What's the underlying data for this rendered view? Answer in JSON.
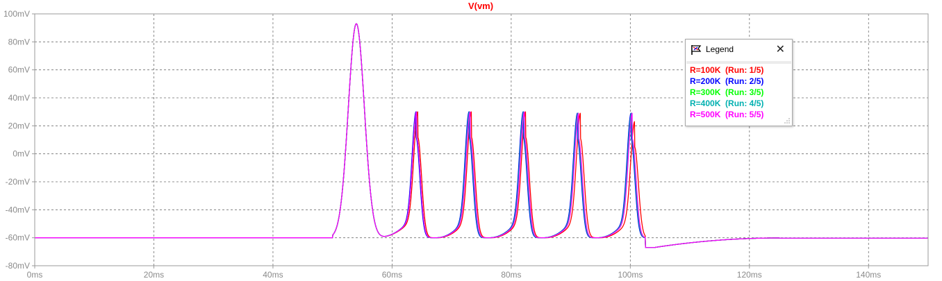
{
  "chart_data": {
    "type": "line",
    "title": "V(vm)",
    "title_color": "#ff0000",
    "xlabel": "",
    "ylabel": "",
    "xlim": [
      0,
      150
    ],
    "ylim": [
      -80,
      100
    ],
    "x_unit": "ms",
    "y_unit": "mV",
    "grid": true,
    "grid_style": "dashed",
    "x_ticks": [
      "0ms",
      "20ms",
      "40ms",
      "60ms",
      "80ms",
      "100ms",
      "120ms",
      "140ms"
    ],
    "x_tick_values": [
      0,
      20,
      40,
      60,
      80,
      100,
      120,
      140
    ],
    "y_ticks": [
      "100mV",
      "80mV",
      "60mV",
      "40mV",
      "20mV",
      "0mV",
      "-20mV",
      "-40mV",
      "-60mV",
      "-80mV"
    ],
    "y_tick_values": [
      100,
      80,
      60,
      40,
      20,
      0,
      -20,
      -40,
      -60,
      -80
    ],
    "baseline_mV": -60,
    "stimulus": {
      "start_ms": 50,
      "end_ms": 101
    },
    "first_spike": {
      "time_ms": 54.0,
      "peak_mV": 93
    },
    "series": [
      {
        "name": "R=100K",
        "color": "#ff0000",
        "spike_times_ms": [
          64.3,
          73.3,
          82.4,
          91.6,
          100.7
        ],
        "spike_peaks_mV": [
          30,
          30,
          30,
          29,
          23
        ]
      },
      {
        "name": "R=200K",
        "color": "#0000ff",
        "spike_times_ms": [
          64.0,
          72.9,
          82.0,
          91.1,
          100.1
        ],
        "spike_peaks_mV": [
          30,
          30,
          30,
          29,
          29
        ]
      },
      {
        "name": "R=300K",
        "color": "#00cc00",
        "spike_times_ms": [
          64.1,
          73.0,
          82.1,
          91.2,
          100.2
        ],
        "spike_peaks_mV": [
          30,
          30,
          30,
          29,
          29
        ]
      },
      {
        "name": "R=400K",
        "color": "#00b0b0",
        "spike_times_ms": [
          64.1,
          73.0,
          82.1,
          91.2,
          100.2
        ],
        "spike_peaks_mV": [
          30,
          30,
          30,
          29,
          29
        ]
      },
      {
        "name": "R=500K",
        "color": "#ff00ff",
        "spike_times_ms": [
          64.1,
          73.1,
          82.2,
          91.3,
          100.3
        ],
        "spike_peaks_mV": [
          30,
          30,
          30,
          29,
          29
        ]
      }
    ],
    "after_stimulus": {
      "trough_mV": -67,
      "trough_ms": 104,
      "recover_ms": 125,
      "end_mV": -60
    }
  },
  "legend": {
    "title": "Legend",
    "close_glyph": "✕",
    "icon": "legend-flag-icon",
    "entries": [
      {
        "text": "R=100K  (Run: 1/5)",
        "color": "#ff0000"
      },
      {
        "text": "R=200K  (Run: 2/5)",
        "color": "#0000ff"
      },
      {
        "text": "R=300K  (Run: 3/5)",
        "color": "#00ff00"
      },
      {
        "text": "R=400K  (Run: 4/5)",
        "color": "#00b0b0"
      },
      {
        "text": "R=500K  (Run: 5/5)",
        "color": "#ff00ff"
      }
    ]
  }
}
